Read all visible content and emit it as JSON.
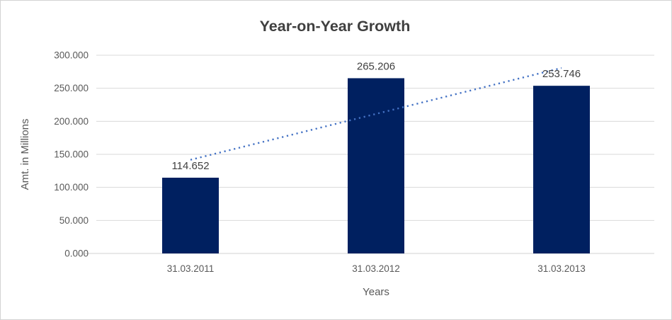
{
  "window": {
    "background": "#FFFFFF",
    "border_color": "#D3D3D3"
  },
  "chart_data": {
    "type": "bar",
    "title": "Year-on-Year Growth",
    "categories": [
      "31.03.2011",
      "31.03.2012",
      "31.03.2013"
    ],
    "values": [
      114.652,
      265.206,
      253.746
    ],
    "data_labels": [
      "114.652",
      "265.206",
      "253.746"
    ],
    "xlabel": "Years",
    "ylabel": "Amt. in Millions",
    "ylim": [
      0,
      300
    ],
    "ytick_step": 50,
    "ytick_labels": [
      "0.000",
      "50.000",
      "100.000",
      "150.000",
      "200.000",
      "250.000",
      "300.000"
    ],
    "grid": true,
    "legend": "none",
    "trendline": {
      "style": "dotted",
      "start_value": 141.7,
      "end_value": 280.7
    },
    "colors": {
      "bar": "#002060",
      "trendline": "#4472C4",
      "gridline": "#D9D9D9",
      "axis_line": "#D9D9D9",
      "title_text": "#3F3F3F",
      "axis_text": "#595959",
      "data_label_text": "#404040"
    }
  }
}
